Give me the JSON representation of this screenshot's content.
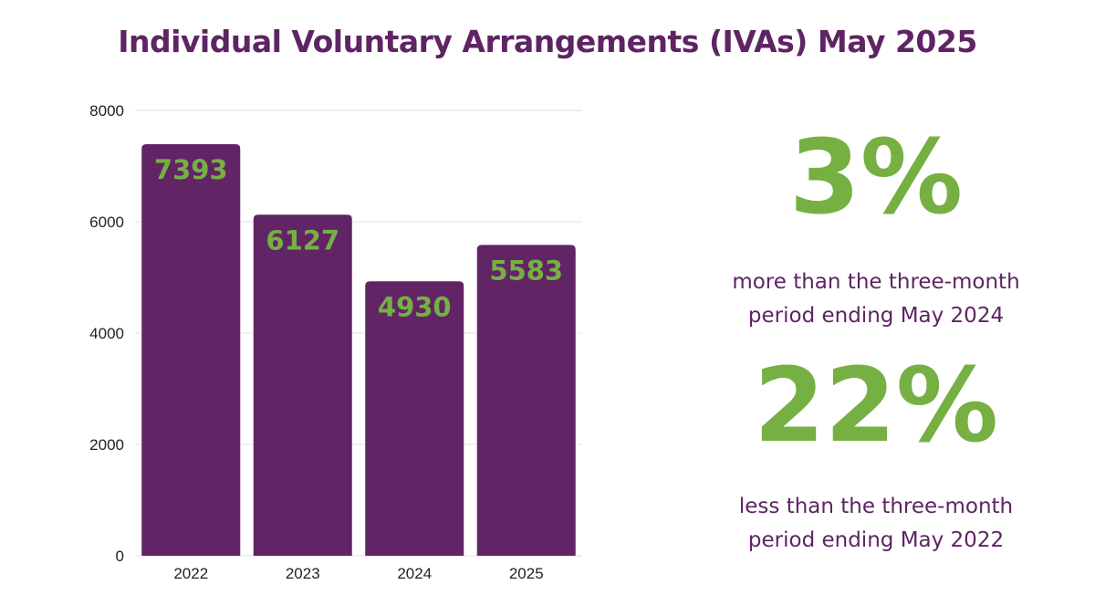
{
  "title": "Individual Voluntary Arrangements (IVAs) May 2025",
  "colors": {
    "title": "#5e2463",
    "bar": "#612566",
    "bar_label": "#76b043",
    "stat": "#76b043",
    "stat_text": "#5e2463",
    "grid": "#e2e2e2"
  },
  "chart_data": {
    "type": "bar",
    "categories": [
      "2022",
      "2023",
      "2024",
      "2025"
    ],
    "values": [
      7393,
      6127,
      4930,
      5583
    ],
    "data_labels": [
      "7393",
      "6127",
      "4930",
      "5583"
    ],
    "yticks": [
      "0",
      "2000",
      "4000",
      "6000",
      "8000"
    ],
    "ylim": [
      0,
      8000
    ],
    "grid": true
  },
  "stats": [
    {
      "value": "3%",
      "line1": "more than the three-month",
      "line2": "period ending May 2024"
    },
    {
      "value": "22%",
      "line1": "less than the three-month",
      "line2": "period ending May 2022"
    }
  ]
}
